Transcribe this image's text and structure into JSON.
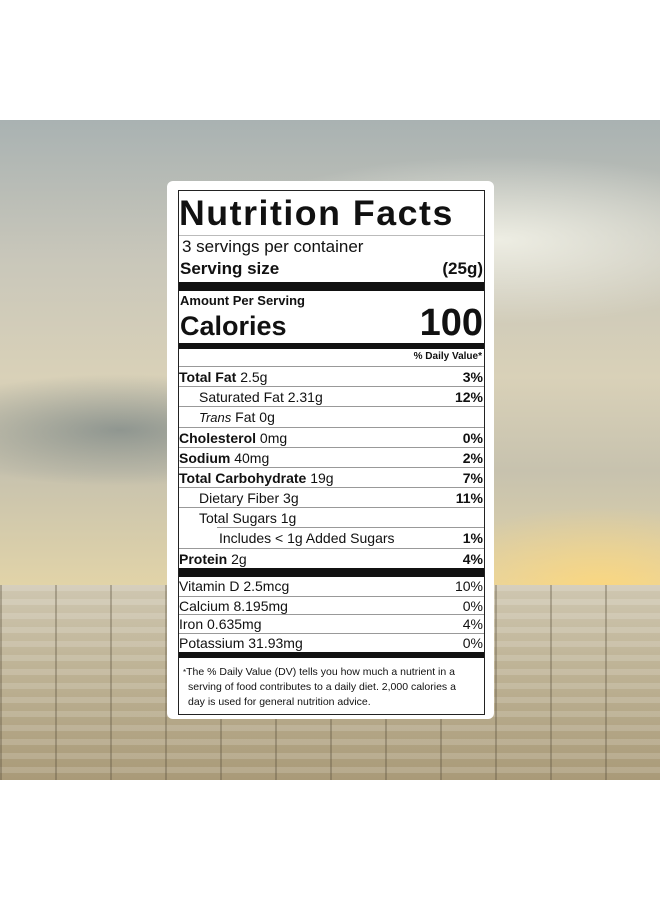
{
  "label": {
    "title": "Nutrition Facts",
    "servings": "3 servings per container",
    "serving_size_label": "Serving size",
    "serving_size_value": "(25g)",
    "amount_per_serving": "Amount Per Serving",
    "calories_label": "Calories",
    "calories_value": "100",
    "daily_value_header": "% Daily Value*",
    "nutrients": [
      {
        "name": "Total Fat",
        "amount": "2.5g",
        "dv": "3%",
        "bold": true,
        "indent": 0
      },
      {
        "name": "Saturated Fat",
        "amount": "2.31g",
        "dv": "12%",
        "bold": false,
        "indent": 1
      },
      {
        "name": "Trans",
        "name_suffix": "Fat",
        "amount": "0g",
        "dv": "",
        "bold": false,
        "indent": 1
      },
      {
        "name": "Cholesterol",
        "amount": "0mg",
        "dv": "0%",
        "bold": true,
        "indent": 0
      },
      {
        "name": "Sodium",
        "amount": "40mg",
        "dv": "2%",
        "bold": true,
        "indent": 0
      },
      {
        "name": "Total Carbohydrate",
        "amount": "19g",
        "dv": "7%",
        "bold": true,
        "indent": 0
      },
      {
        "name": "Dietary Fiber",
        "amount": "3g",
        "dv": "11%",
        "bold": false,
        "indent": 1
      },
      {
        "name": "Total Sugars",
        "amount": "1g",
        "dv": "",
        "bold": false,
        "indent": 1
      },
      {
        "name": "Includes < 1g Added Sugars",
        "amount": "",
        "dv": "1%",
        "bold": false,
        "indent": 2
      },
      {
        "name": "Protein",
        "amount": "2g",
        "dv": "4%",
        "bold": true,
        "indent": 0
      }
    ],
    "vitamins": [
      {
        "text": "Vitamin D 2.5mcg",
        "dv": "10%"
      },
      {
        "text": "Calcium 8.195mg",
        "dv": "0%"
      },
      {
        "text": "Iron 0.635mg",
        "dv": "4%"
      },
      {
        "text": "Potassium 31.93mg",
        "dv": "0%"
      }
    ],
    "footnote": "The % Daily Value (DV) tells you how much a nutrient in a serving of food contributes to a daily diet. 2,000 calories a day is used for general nutrition advice."
  }
}
